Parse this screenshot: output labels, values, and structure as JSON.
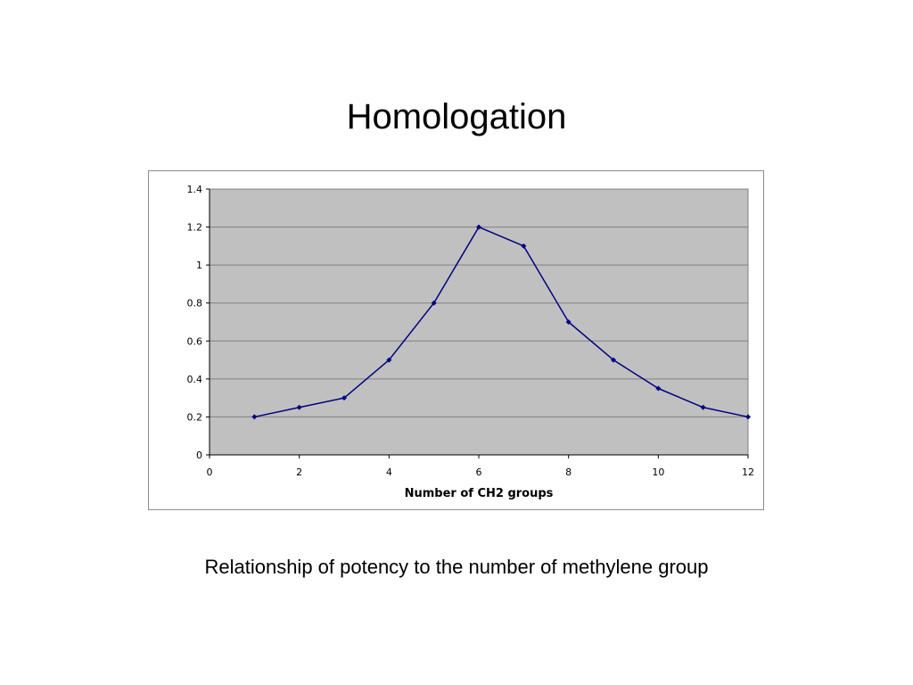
{
  "slide": {
    "title": "Homologation",
    "caption": "Relationship of potency to the number of methylene group"
  },
  "colors": {
    "plot_background": "#c0c0c0",
    "series_line": "#000080",
    "gridline": "#808080"
  },
  "chart_data": {
    "type": "line",
    "title": "",
    "xlabel": "Number of CH2 groups",
    "ylabel": "",
    "xlim": [
      0,
      12
    ],
    "ylim": [
      0,
      1.4
    ],
    "x_ticks": [
      "0",
      "2",
      "4",
      "6",
      "8",
      "10",
      "12"
    ],
    "y_ticks": [
      "0",
      "0.2",
      "0.4",
      "0.6",
      "0.8",
      "1",
      "1.2",
      "1.4"
    ],
    "grid": "horizontal",
    "legend": "none",
    "series": [
      {
        "x": [
          1,
          2,
          3,
          4,
          5,
          6,
          7,
          8,
          9,
          10,
          11,
          12
        ],
        "values": [
          0.2,
          0.25,
          0.3,
          0.5,
          0.8,
          1.2,
          1.1,
          0.7,
          0.5,
          0.35,
          0.25,
          0.2
        ]
      }
    ]
  }
}
